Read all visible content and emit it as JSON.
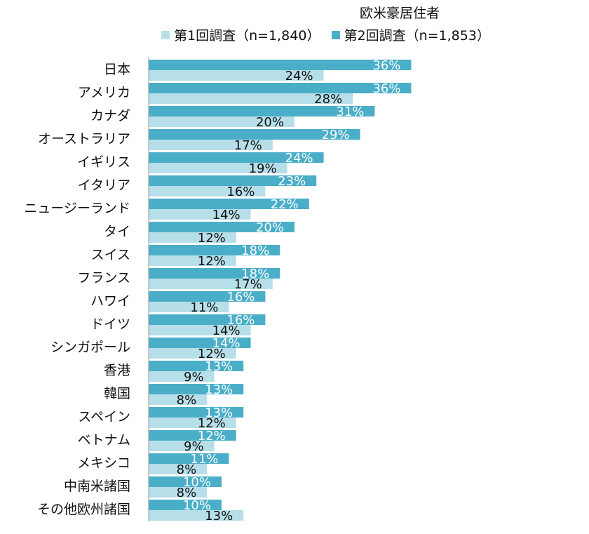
{
  "legend": {
    "title": "欧米豪居住者",
    "series1_label": "第1回調査（n=1,840）",
    "series2_label": "第2回調査（n=1,853）"
  },
  "colors": {
    "series1": "#b7dfe9",
    "series2": "#4aaec8",
    "axis": "#999999"
  },
  "chart_data": {
    "type": "bar",
    "orientation": "horizontal",
    "legend_title": "欧米豪居住者",
    "categories": [
      "日本",
      "アメリカ",
      "カナダ",
      "オーストラリア",
      "イギリス",
      "イタリア",
      "ニュージーランド",
      "タイ",
      "スイス",
      "フランス",
      "ハワイ",
      "ドイツ",
      "シンガポール",
      "香港",
      "韓国",
      "スペイン",
      "ベトナム",
      "メキシコ",
      "中南米諸国",
      "その他欧州諸国"
    ],
    "series": [
      {
        "name": "第2回調査（n=1,853）",
        "values": [
          36,
          36,
          31,
          29,
          24,
          23,
          22,
          20,
          18,
          18,
          16,
          16,
          14,
          13,
          13,
          13,
          12,
          11,
          10,
          10
        ]
      },
      {
        "name": "第1回調査（n=1,840）",
        "values": [
          24,
          28,
          20,
          17,
          19,
          16,
          14,
          12,
          12,
          17,
          11,
          14,
          12,
          9,
          8,
          12,
          9,
          8,
          8,
          13
        ]
      }
    ],
    "xlim": [
      0,
      100
    ],
    "grid": false,
    "legend_position": "top"
  }
}
